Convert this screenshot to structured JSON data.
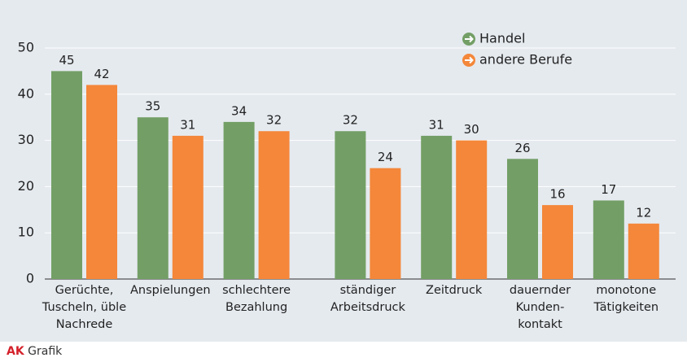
{
  "chart_data": {
    "type": "bar",
    "categories": [
      "Gerüchte,\nTuscheln, üble\nNachrede",
      "Anspielungen",
      "schlechtere\nBezahlung",
      "ständiger\nArbeitsdruck",
      "Zeitdruck",
      "dauernder\nKunden-\nkontakt",
      "monotone\nTätigkeiten"
    ],
    "series": [
      {
        "name": "Handel",
        "color": "#739f66",
        "values": [
          45,
          35,
          34,
          32,
          31,
          26,
          17
        ]
      },
      {
        "name": "andere Berufe",
        "color": "#f4873a",
        "values": [
          42,
          31,
          32,
          24,
          30,
          16,
          12
        ]
      }
    ],
    "ylim": [
      0,
      50
    ],
    "yticks": [
      0,
      10,
      20,
      30,
      40,
      50
    ],
    "grid": true,
    "legend": "top-right"
  },
  "footer": {
    "brand": "AK",
    "label": "Grafik"
  }
}
